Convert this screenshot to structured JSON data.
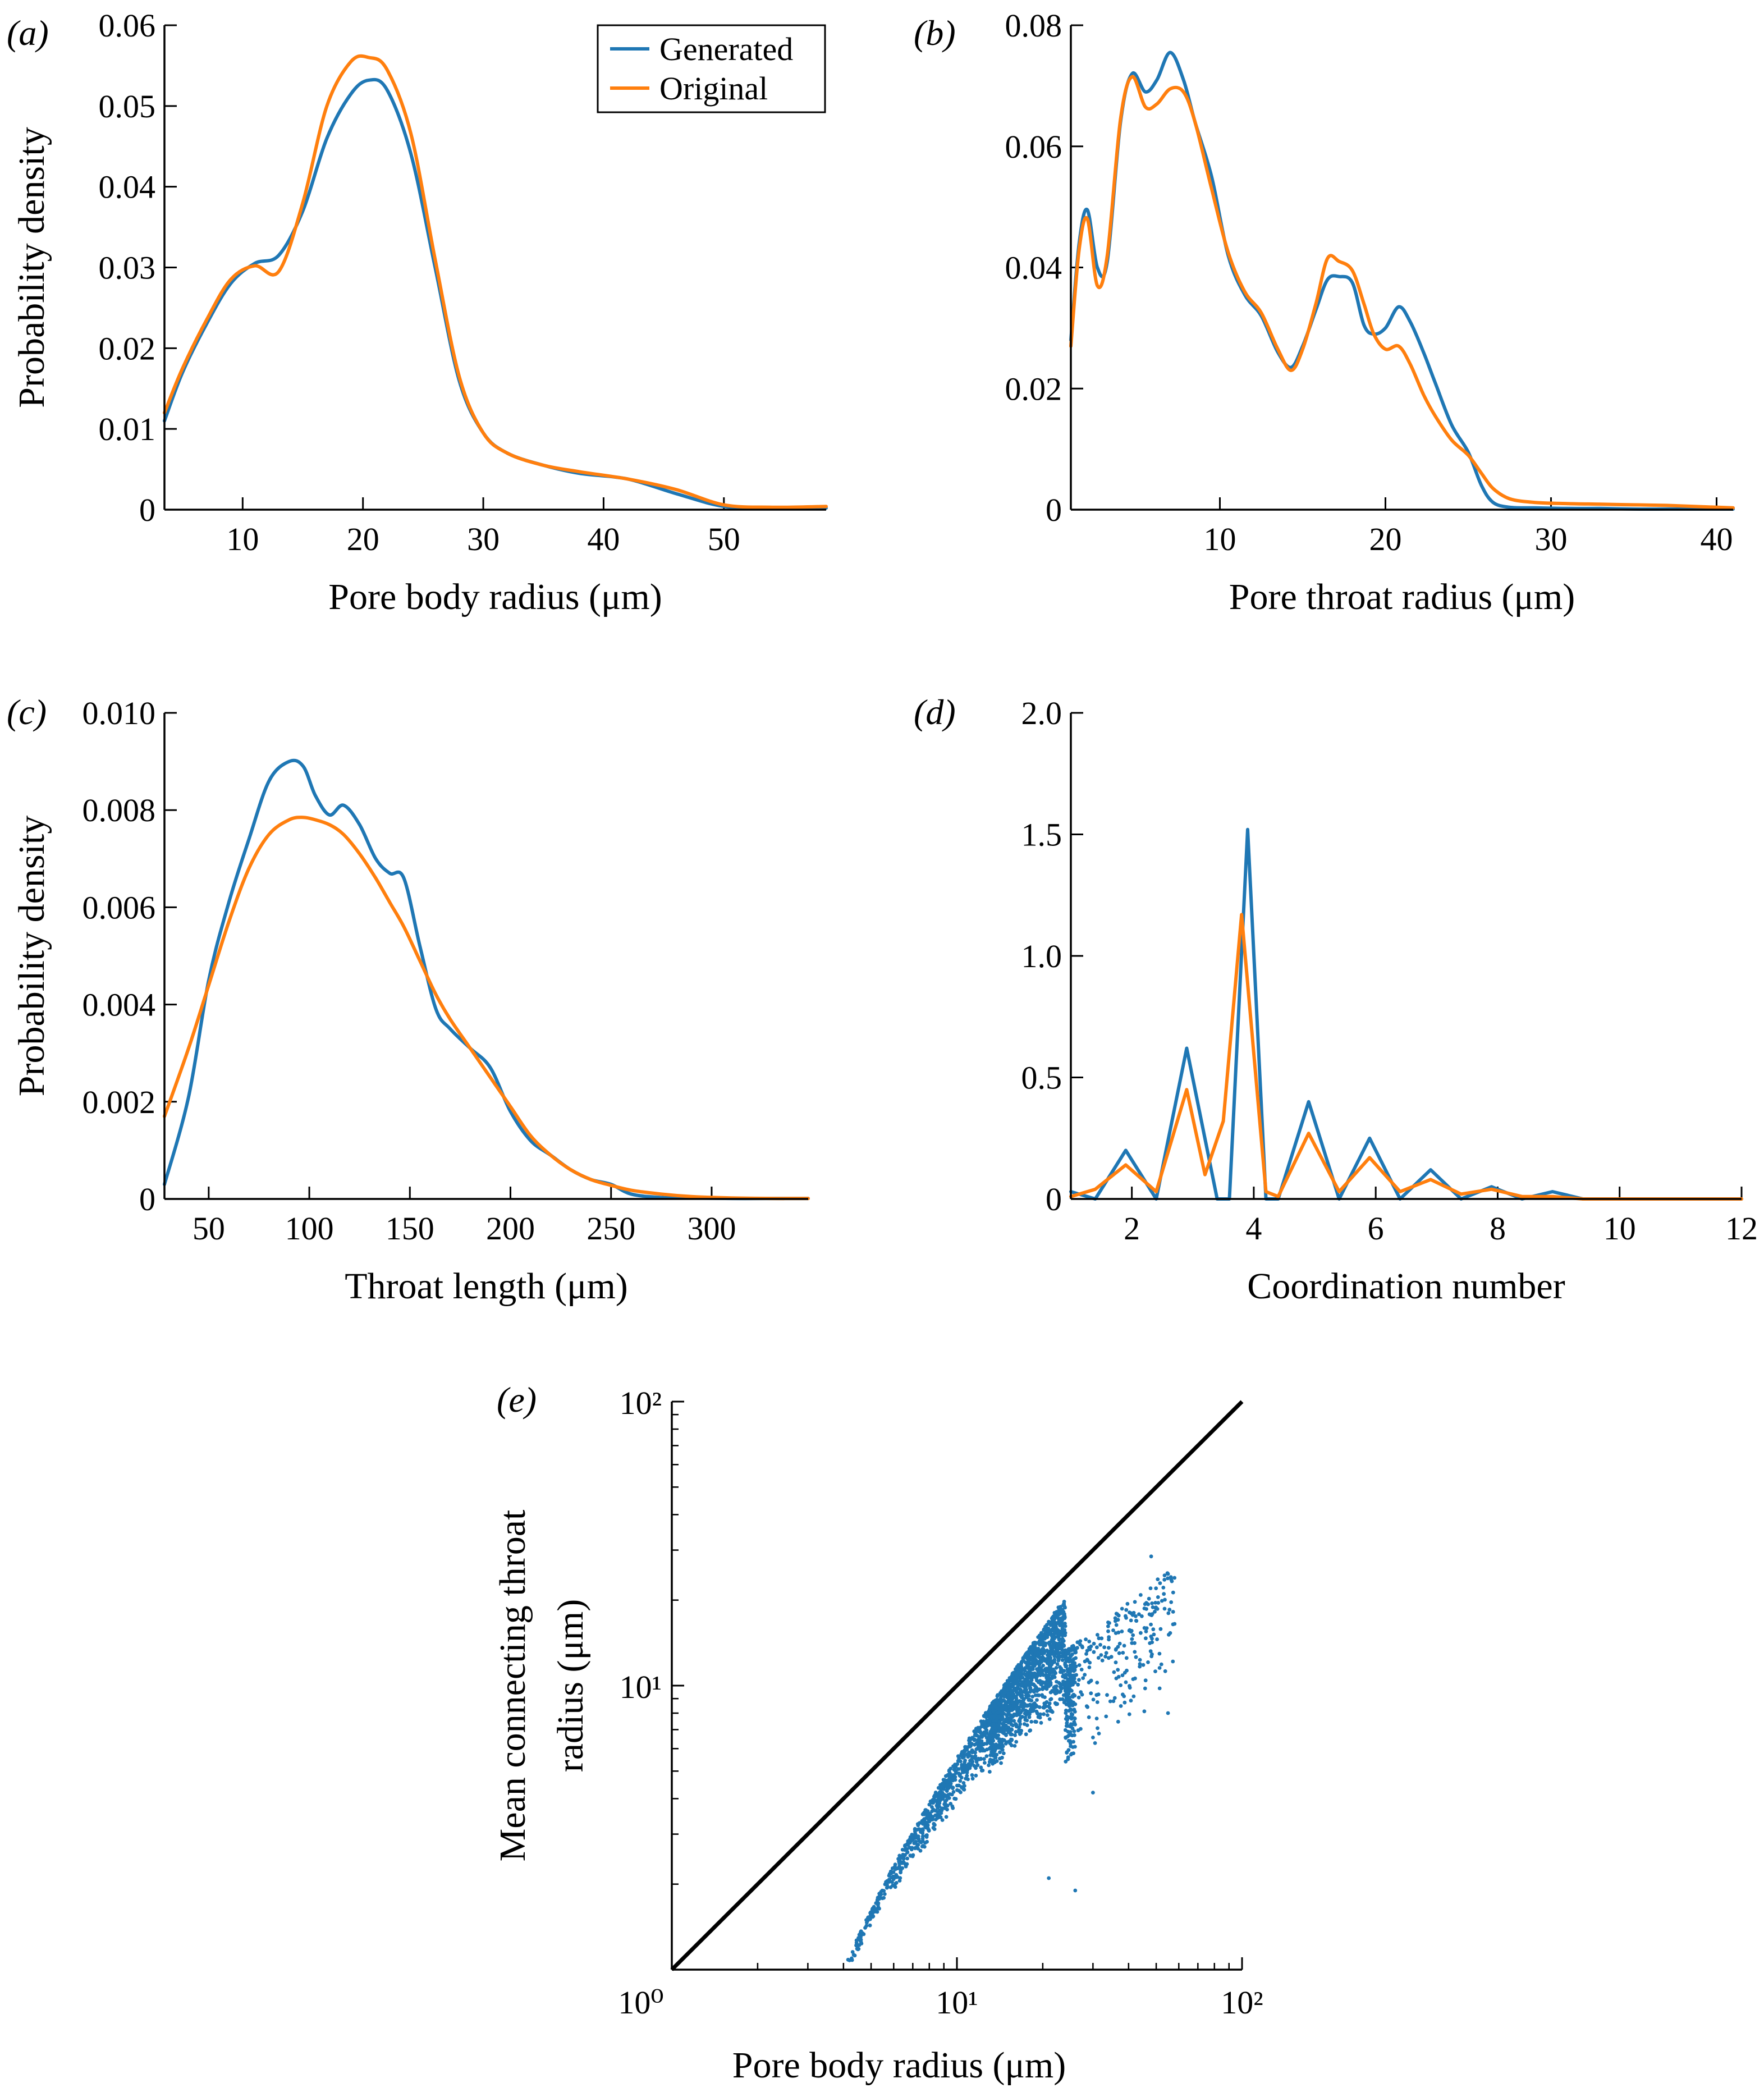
{
  "colors": {
    "generated": "#1f77b4",
    "original": "#ff7f0e",
    "identity_line": "#000000",
    "scatter": "#1f77b4"
  },
  "legend": {
    "generated": "Generated",
    "original": "Original"
  },
  "chart_data": [
    {
      "id": "a",
      "panel_label": "(a)",
      "type": "line",
      "xlabel": "Pore body radius (μm)",
      "ylabel": "Probability density",
      "xlim": [
        3.5,
        58.5
      ],
      "ylim": [
        0,
        0.06
      ],
      "xticks": [
        10,
        20,
        30,
        40,
        50
      ],
      "xtick_labels": [
        "10",
        "20",
        "30",
        "40",
        "50"
      ],
      "yticks": [
        0,
        0.01,
        0.02,
        0.03,
        0.04,
        0.05,
        0.06
      ],
      "ytick_labels": [
        "0",
        "0.01",
        "0.02",
        "0.03",
        "0.04",
        "0.05",
        "0.06"
      ],
      "legend_position": "top-right",
      "series": [
        {
          "name": "Generated",
          "key": "generated",
          "x": [
            3.5,
            5,
            7,
            9,
            11,
            13,
            15,
            17,
            19,
            20.5,
            22,
            24,
            26,
            28,
            30,
            32,
            35,
            38,
            42,
            46,
            50,
            54,
            58.5
          ],
          "y": [
            0.011,
            0.017,
            0.023,
            0.028,
            0.0305,
            0.0315,
            0.037,
            0.046,
            0.0515,
            0.0532,
            0.052,
            0.044,
            0.03,
            0.016,
            0.0095,
            0.007,
            0.0055,
            0.0045,
            0.0038,
            0.002,
            0.0004,
            0.0002,
            0.0002
          ]
        },
        {
          "name": "Original",
          "key": "original",
          "x": [
            3.5,
            5,
            7,
            9,
            11,
            13,
            15,
            17,
            19,
            20.5,
            22,
            24,
            26,
            28,
            30,
            32,
            35,
            38,
            42,
            46,
            50,
            54,
            58.5
          ],
          "y": [
            0.012,
            0.0175,
            0.0235,
            0.0285,
            0.0302,
            0.0295,
            0.038,
            0.05,
            0.0555,
            0.056,
            0.0545,
            0.0465,
            0.031,
            0.0165,
            0.0095,
            0.007,
            0.0055,
            0.0047,
            0.0038,
            0.0025,
            0.0006,
            0.0003,
            0.0004
          ]
        }
      ]
    },
    {
      "id": "b",
      "panel_label": "(b)",
      "type": "line",
      "xlabel": "Pore throat radius (μm)",
      "ylabel": "",
      "xlim": [
        1,
        41
      ],
      "ylim": [
        0,
        0.08
      ],
      "xticks": [
        10,
        20,
        30,
        40
      ],
      "xtick_labels": [
        "10",
        "20",
        "30",
        "40"
      ],
      "yticks": [
        0,
        0.02,
        0.04,
        0.06,
        0.08
      ],
      "ytick_labels": [
        "0",
        "0.02",
        "0.04",
        "0.06",
        "0.08"
      ],
      "series": [
        {
          "name": "Generated",
          "key": "generated",
          "x": [
            1,
            1.5,
            2,
            2.6,
            3.2,
            4,
            4.7,
            5.5,
            6.2,
            7,
            7.8,
            8.5,
            9.5,
            10.5,
            11.5,
            12.5,
            13.5,
            14.3,
            15,
            15.8,
            16.5,
            17.2,
            18,
            18.7,
            19.3,
            20,
            20.8,
            21.5,
            22.3,
            23,
            24,
            25,
            25.8,
            26.5,
            27.5,
            29,
            31,
            33,
            35,
            37,
            39,
            41
          ],
          "y": [
            0.028,
            0.044,
            0.0495,
            0.04,
            0.041,
            0.064,
            0.072,
            0.069,
            0.071,
            0.0755,
            0.071,
            0.064,
            0.055,
            0.042,
            0.0355,
            0.032,
            0.026,
            0.0235,
            0.027,
            0.033,
            0.038,
            0.0385,
            0.0375,
            0.0305,
            0.029,
            0.03,
            0.0335,
            0.031,
            0.026,
            0.021,
            0.014,
            0.0095,
            0.004,
            0.0012,
            0.0004,
            0.0003,
            0.0002,
            0.0002,
            0.0001,
            0.0001,
            0.0001,
            0.0001
          ]
        },
        {
          "name": "Original",
          "key": "original",
          "x": [
            1,
            1.5,
            2,
            2.6,
            3.2,
            4,
            4.7,
            5.5,
            6.2,
            7,
            7.8,
            8.5,
            9.5,
            10.5,
            11.5,
            12.5,
            13.5,
            14.3,
            15,
            15.8,
            16.5,
            17.2,
            18,
            18.7,
            19.3,
            20,
            20.8,
            21.5,
            22.3,
            23,
            24,
            25,
            25.8,
            26.5,
            27.5,
            29,
            31,
            33,
            35,
            37,
            39,
            41
          ],
          "y": [
            0.027,
            0.043,
            0.048,
            0.037,
            0.042,
            0.0645,
            0.0715,
            0.0665,
            0.067,
            0.0695,
            0.069,
            0.064,
            0.053,
            0.0425,
            0.036,
            0.0325,
            0.0265,
            0.023,
            0.0265,
            0.034,
            0.0415,
            0.041,
            0.0395,
            0.034,
            0.029,
            0.0265,
            0.027,
            0.024,
            0.019,
            0.0155,
            0.0115,
            0.009,
            0.006,
            0.0035,
            0.0018,
            0.0012,
            0.001,
            0.0009,
            0.0008,
            0.0007,
            0.0005,
            0.0003
          ]
        }
      ]
    },
    {
      "id": "c",
      "panel_label": "(c)",
      "type": "line",
      "xlabel": "Throat length (μm)",
      "ylabel": "Probability density",
      "xlim": [
        28,
        348
      ],
      "ylim": [
        0,
        0.01
      ],
      "xticks": [
        50,
        100,
        150,
        200,
        250,
        300
      ],
      "xtick_labels": [
        "50",
        "100",
        "150",
        "200",
        "250",
        "300"
      ],
      "yticks": [
        0,
        0.002,
        0.004,
        0.006,
        0.008,
        0.01
      ],
      "ytick_labels": [
        "0",
        "0.002",
        "0.004",
        "0.006",
        "0.008",
        "0.010"
      ],
      "series": [
        {
          "name": "Generated",
          "key": "generated",
          "x": [
            28,
            40,
            50,
            60,
            70,
            80,
            90,
            97,
            103,
            110,
            117,
            125,
            133,
            140,
            147,
            155,
            163,
            170,
            180,
            190,
            200,
            210,
            220,
            230,
            240,
            250,
            260,
            275,
            290,
            310,
            330,
            348
          ],
          "y": [
            0.0003,
            0.0021,
            0.0045,
            0.0061,
            0.0074,
            0.0086,
            0.009,
            0.0089,
            0.0083,
            0.0079,
            0.0081,
            0.0077,
            0.007,
            0.0067,
            0.0066,
            0.0052,
            0.0039,
            0.0035,
            0.0031,
            0.0027,
            0.0018,
            0.0012,
            0.0009,
            0.0006,
            0.0004,
            0.0003,
            0.0001,
            3e-05,
            2e-05,
            1e-05,
            1e-05,
            1e-05
          ]
        },
        {
          "name": "Original",
          "key": "original",
          "x": [
            28,
            40,
            50,
            60,
            70,
            80,
            90,
            97,
            103,
            110,
            117,
            125,
            133,
            140,
            147,
            155,
            163,
            170,
            180,
            190,
            200,
            210,
            220,
            230,
            240,
            250,
            260,
            275,
            290,
            310,
            330,
            348
          ],
          "y": [
            0.0017,
            0.0031,
            0.0044,
            0.0057,
            0.0068,
            0.0075,
            0.0078,
            0.00785,
            0.0078,
            0.0077,
            0.0075,
            0.0071,
            0.0066,
            0.0061,
            0.0056,
            0.0049,
            0.0042,
            0.0037,
            0.0031,
            0.0025,
            0.0019,
            0.0013,
            0.0009,
            0.0006,
            0.0004,
            0.00028,
            0.00018,
            0.0001,
            5e-05,
            2e-05,
            1e-05,
            1e-05
          ]
        }
      ]
    },
    {
      "id": "d",
      "panel_label": "(d)",
      "type": "line",
      "xlabel": "Coordination number",
      "ylabel": "",
      "xlim": [
        1,
        12
      ],
      "ylim": [
        0,
        2.0
      ],
      "xticks": [
        2,
        4,
        6,
        8,
        10,
        12
      ],
      "xtick_labels": [
        "2",
        "4",
        "6",
        "8",
        "10",
        "12"
      ],
      "yticks": [
        0,
        0.5,
        1.0,
        1.5,
        2.0
      ],
      "ytick_labels": [
        "0",
        "0.5",
        "1.0",
        "1.5",
        "2.0"
      ],
      "series": [
        {
          "name": "Generated",
          "key": "generated",
          "x": [
            1,
            1.4,
            1.9,
            2.4,
            2.9,
            3.4,
            3.6,
            3.9,
            4.2,
            4.4,
            4.9,
            5.4,
            5.9,
            6.4,
            6.9,
            7.4,
            7.9,
            8.4,
            8.9,
            9.4,
            10,
            11,
            12
          ],
          "y": [
            0.03,
            0.0,
            0.2,
            0.0,
            0.62,
            0.0,
            0.0,
            1.52,
            0.0,
            0.0,
            0.4,
            0.0,
            0.25,
            0.0,
            0.12,
            0.0,
            0.05,
            0.0,
            0.03,
            0.0,
            0.0,
            0.0,
            0.0
          ]
        },
        {
          "name": "Original",
          "key": "original",
          "x": [
            1,
            1.4,
            1.9,
            2.4,
            2.9,
            3.2,
            3.5,
            3.8,
            4.2,
            4.4,
            4.9,
            5.4,
            5.9,
            6.4,
            6.9,
            7.4,
            7.9,
            8.4,
            8.9,
            9.4,
            10,
            11,
            12
          ],
          "y": [
            0.01,
            0.04,
            0.14,
            0.03,
            0.45,
            0.1,
            0.32,
            1.17,
            0.03,
            0.01,
            0.27,
            0.03,
            0.17,
            0.03,
            0.08,
            0.02,
            0.04,
            0.01,
            0.01,
            0.0,
            0.0,
            0.0,
            0.0
          ]
        }
      ]
    },
    {
      "id": "e",
      "panel_label": "(e)",
      "type": "scatter",
      "xscale": "log",
      "yscale": "log",
      "xlabel": "Pore body radius (μm)",
      "ylabel_lines": [
        "Mean connecting throat",
        "radius (μm)"
      ],
      "xlim": [
        1,
        100
      ],
      "ylim": [
        1,
        100
      ],
      "xtick_labels": [
        "10⁰",
        "10¹",
        "10²"
      ],
      "ytick_labels": [
        "10¹",
        "10²"
      ],
      "identity_line": {
        "x": [
          1,
          100
        ],
        "y": [
          1,
          100
        ]
      },
      "scatter_trend": {
        "x_start": 4.0,
        "x_end": 24.0,
        "ratio_at_start": 0.25,
        "ratio_at_end": 0.85,
        "point_count": 2400,
        "outliers": [
          [
            21,
            2.1
          ],
          [
            26,
            1.9
          ],
          [
            48,
            28.5
          ],
          [
            55,
            8.0
          ],
          [
            58,
            16.5
          ],
          [
            30,
            4.2
          ]
        ]
      }
    }
  ]
}
